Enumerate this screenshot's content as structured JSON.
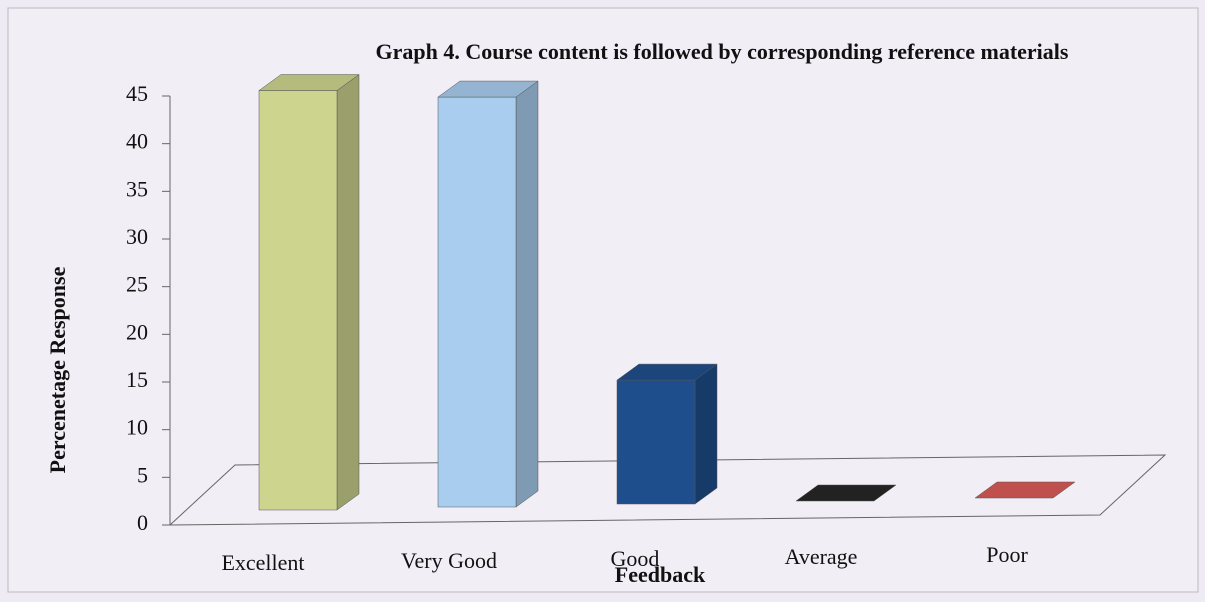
{
  "chart_data": {
    "type": "bar3d",
    "title": "Graph 4. Course content is followed by corresponding reference materials",
    "x_label": "Feedback",
    "y_label": "Percenetage Response",
    "categories": [
      "Excellent",
      "Very Good",
      "Good",
      "Average",
      "Poor"
    ],
    "values": [
      44,
      43,
      13,
      0,
      0
    ],
    "colors": [
      "#cdd48e",
      "#a9cdef",
      "#1f4e8c",
      "#222222",
      "#c0504d"
    ],
    "ylim": [
      0,
      45
    ],
    "yticks": [
      0,
      5,
      10,
      15,
      20,
      25,
      30,
      35,
      40,
      45
    ]
  }
}
